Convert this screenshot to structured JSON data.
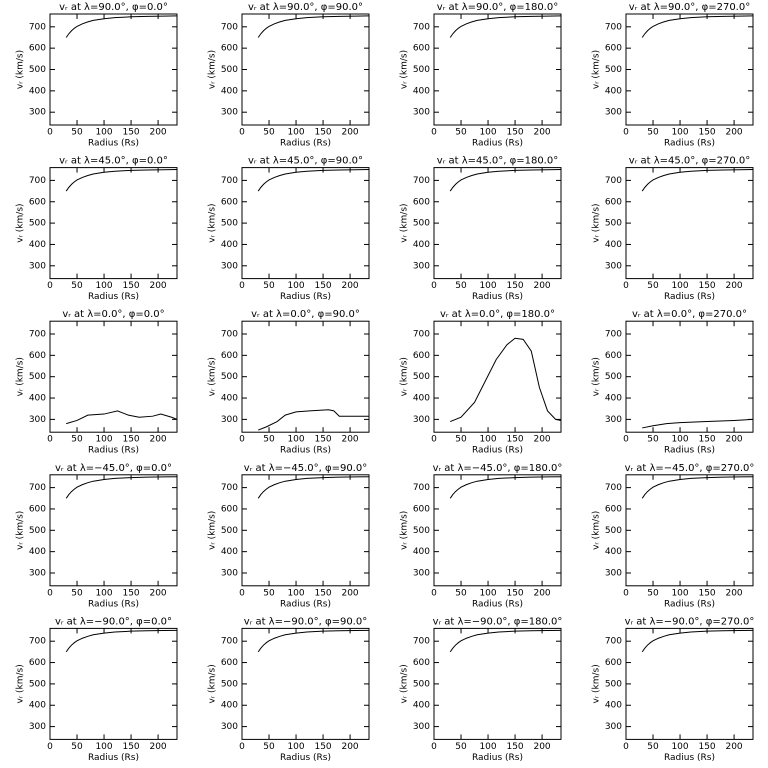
{
  "chart_data": [
    {
      "type": "line",
      "title": "vᵣ at λ=90.0°, φ=0.0°",
      "x_label": "Radius (Rs)",
      "y_label": "vᵣ (km/s)",
      "x": [
        30,
        35,
        40,
        45,
        50,
        60,
        70,
        80,
        100,
        120,
        150,
        180,
        210,
        235
      ],
      "series": [
        {
          "color": "#000000",
          "values": [
            650,
            668,
            682,
            693,
            702,
            714,
            723,
            730,
            738,
            743,
            747,
            749,
            750,
            751
          ]
        }
      ],
      "xlim": [
        0,
        235
      ],
      "ylim": [
        240,
        760
      ],
      "xticks": [
        0,
        50,
        100,
        150,
        200
      ],
      "yticks": [
        300,
        400,
        500,
        600,
        700
      ]
    },
    {
      "type": "line",
      "title": "vᵣ at λ=90.0°, φ=90.0°",
      "x_label": "Radius (Rs)",
      "y_label": "vᵣ (km/s)",
      "x": [
        30,
        35,
        40,
        45,
        50,
        60,
        70,
        80,
        100,
        120,
        150,
        180,
        210,
        235
      ],
      "series": [
        {
          "color": "#000000",
          "values": [
            650,
            668,
            682,
            693,
            702,
            714,
            723,
            730,
            738,
            743,
            747,
            749,
            750,
            751
          ]
        }
      ],
      "xlim": [
        0,
        235
      ],
      "ylim": [
        240,
        760
      ],
      "xticks": [
        0,
        50,
        100,
        150,
        200
      ],
      "yticks": [
        300,
        400,
        500,
        600,
        700
      ]
    },
    {
      "type": "line",
      "title": "vᵣ at λ=90.0°, φ=180.0°",
      "x_label": "Radius (Rs)",
      "y_label": "vᵣ (km/s)",
      "x": [
        30,
        35,
        40,
        45,
        50,
        60,
        70,
        80,
        100,
        120,
        150,
        180,
        210,
        235
      ],
      "series": [
        {
          "color": "#000000",
          "values": [
            650,
            668,
            682,
            693,
            702,
            714,
            723,
            730,
            738,
            743,
            747,
            749,
            750,
            751
          ]
        }
      ],
      "xlim": [
        0,
        235
      ],
      "ylim": [
        240,
        760
      ],
      "xticks": [
        0,
        50,
        100,
        150,
        200
      ],
      "yticks": [
        300,
        400,
        500,
        600,
        700
      ]
    },
    {
      "type": "line",
      "title": "vᵣ at λ=90.0°, φ=270.0°",
      "x_label": "Radius (Rs)",
      "y_label": "vᵣ (km/s)",
      "x": [
        30,
        35,
        40,
        45,
        50,
        60,
        70,
        80,
        100,
        120,
        150,
        180,
        210,
        235
      ],
      "series": [
        {
          "color": "#000000",
          "values": [
            650,
            668,
            682,
            693,
            702,
            714,
            723,
            730,
            738,
            743,
            747,
            749,
            750,
            751
          ]
        }
      ],
      "xlim": [
        0,
        235
      ],
      "ylim": [
        240,
        760
      ],
      "xticks": [
        0,
        50,
        100,
        150,
        200
      ],
      "yticks": [
        300,
        400,
        500,
        600,
        700
      ]
    },
    {
      "type": "line",
      "title": "vᵣ at λ=45.0°, φ=0.0°",
      "x_label": "Radius (Rs)",
      "y_label": "vᵣ (km/s)",
      "x": [
        30,
        35,
        40,
        45,
        50,
        60,
        70,
        80,
        100,
        120,
        150,
        180,
        210,
        235
      ],
      "series": [
        {
          "color": "#000000",
          "values": [
            650,
            668,
            682,
            693,
            702,
            714,
            723,
            730,
            738,
            743,
            747,
            749,
            750,
            751
          ]
        }
      ],
      "xlim": [
        0,
        235
      ],
      "ylim": [
        240,
        760
      ],
      "xticks": [
        0,
        50,
        100,
        150,
        200
      ],
      "yticks": [
        300,
        400,
        500,
        600,
        700
      ]
    },
    {
      "type": "line",
      "title": "vᵣ at λ=45.0°, φ=90.0°",
      "x_label": "Radius (Rs)",
      "y_label": "vᵣ (km/s)",
      "x": [
        30,
        35,
        40,
        45,
        50,
        60,
        70,
        80,
        100,
        120,
        150,
        180,
        210,
        235
      ],
      "series": [
        {
          "color": "#000000",
          "values": [
            650,
            668,
            682,
            693,
            702,
            714,
            723,
            730,
            738,
            743,
            747,
            749,
            750,
            751
          ]
        }
      ],
      "xlim": [
        0,
        235
      ],
      "ylim": [
        240,
        760
      ],
      "xticks": [
        0,
        50,
        100,
        150,
        200
      ],
      "yticks": [
        300,
        400,
        500,
        600,
        700
      ]
    },
    {
      "type": "line",
      "title": "vᵣ at λ=45.0°, φ=180.0°",
      "x_label": "Radius (Rs)",
      "y_label": "vᵣ (km/s)",
      "x": [
        30,
        35,
        40,
        45,
        50,
        60,
        70,
        80,
        100,
        120,
        150,
        180,
        210,
        235
      ],
      "series": [
        {
          "color": "#000000",
          "values": [
            650,
            668,
            682,
            693,
            702,
            714,
            723,
            730,
            738,
            743,
            747,
            749,
            750,
            751
          ]
        }
      ],
      "xlim": [
        0,
        235
      ],
      "ylim": [
        240,
        760
      ],
      "xticks": [
        0,
        50,
        100,
        150,
        200
      ],
      "yticks": [
        300,
        400,
        500,
        600,
        700
      ]
    },
    {
      "type": "line",
      "title": "vᵣ at λ=45.0°, φ=270.0°",
      "x_label": "Radius (Rs)",
      "y_label": "vᵣ (km/s)",
      "x": [
        30,
        35,
        40,
        45,
        50,
        60,
        70,
        80,
        100,
        120,
        150,
        180,
        210,
        235
      ],
      "series": [
        {
          "color": "#000000",
          "values": [
            650,
            668,
            682,
            693,
            702,
            714,
            723,
            730,
            738,
            743,
            747,
            749,
            750,
            751
          ]
        }
      ],
      "xlim": [
        0,
        235
      ],
      "ylim": [
        240,
        760
      ],
      "xticks": [
        0,
        50,
        100,
        150,
        200
      ],
      "yticks": [
        300,
        400,
        500,
        600,
        700
      ]
    },
    {
      "type": "line",
      "title": "vᵣ at λ=0.0°, φ=0.0°",
      "x_label": "Radius (Rs)",
      "y_label": "vᵣ (km/s)",
      "x": [
        30,
        50,
        70,
        100,
        125,
        145,
        165,
        190,
        205,
        225,
        235
      ],
      "series": [
        {
          "color": "#000000",
          "values": [
            280,
            295,
            320,
            325,
            340,
            320,
            310,
            315,
            325,
            310,
            300
          ]
        }
      ],
      "xlim": [
        0,
        235
      ],
      "ylim": [
        240,
        760
      ],
      "xticks": [
        0,
        50,
        100,
        150,
        200
      ],
      "yticks": [
        300,
        400,
        500,
        600,
        700
      ]
    },
    {
      "type": "line",
      "title": "vᵣ at λ=0.0°, φ=90.0°",
      "x_label": "Radius (Rs)",
      "y_label": "vᵣ (km/s)",
      "x": [
        30,
        45,
        65,
        80,
        100,
        125,
        160,
        170,
        180,
        235
      ],
      "series": [
        {
          "color": "#000000",
          "values": [
            250,
            265,
            290,
            320,
            335,
            340,
            345,
            340,
            315,
            315
          ]
        }
      ],
      "xlim": [
        0,
        235
      ],
      "ylim": [
        240,
        760
      ],
      "xticks": [
        0,
        50,
        100,
        150,
        200
      ],
      "yticks": [
        300,
        400,
        500,
        600,
        700
      ]
    },
    {
      "type": "line",
      "title": "vᵣ at λ=0.0°, φ=180.0°",
      "x_label": "Radius (Rs)",
      "y_label": "vᵣ (km/s)",
      "x": [
        30,
        50,
        75,
        95,
        115,
        135,
        150,
        165,
        180,
        195,
        210,
        225,
        235
      ],
      "series": [
        {
          "color": "#000000",
          "values": [
            290,
            310,
            380,
            480,
            580,
            650,
            680,
            675,
            620,
            450,
            340,
            300,
            295
          ]
        }
      ],
      "xlim": [
        0,
        235
      ],
      "ylim": [
        240,
        760
      ],
      "xticks": [
        0,
        50,
        100,
        150,
        200
      ],
      "yticks": [
        300,
        400,
        500,
        600,
        700
      ]
    },
    {
      "type": "line",
      "title": "vᵣ at λ=0.0°, φ=270.0°",
      "x_label": "Radius (Rs)",
      "y_label": "vᵣ (km/s)",
      "x": [
        30,
        50,
        75,
        100,
        150,
        200,
        235
      ],
      "series": [
        {
          "color": "#000000",
          "values": [
            260,
            270,
            280,
            285,
            290,
            295,
            300
          ]
        }
      ],
      "xlim": [
        0,
        235
      ],
      "ylim": [
        240,
        760
      ],
      "xticks": [
        0,
        50,
        100,
        150,
        200
      ],
      "yticks": [
        300,
        400,
        500,
        600,
        700
      ]
    },
    {
      "type": "line",
      "title": "vᵣ at λ=−45.0°, φ=0.0°",
      "x_label": "Radius (Rs)",
      "y_label": "vᵣ (km/s)",
      "x": [
        30,
        35,
        40,
        45,
        50,
        60,
        70,
        80,
        100,
        120,
        150,
        180,
        210,
        235
      ],
      "series": [
        {
          "color": "#000000",
          "values": [
            650,
            668,
            682,
            693,
            702,
            714,
            723,
            730,
            738,
            743,
            747,
            749,
            750,
            751
          ]
        }
      ],
      "xlim": [
        0,
        235
      ],
      "ylim": [
        240,
        760
      ],
      "xticks": [
        0,
        50,
        100,
        150,
        200
      ],
      "yticks": [
        300,
        400,
        500,
        600,
        700
      ]
    },
    {
      "type": "line",
      "title": "vᵣ at λ=−45.0°, φ=90.0°",
      "x_label": "Radius (Rs)",
      "y_label": "vᵣ (km/s)",
      "x": [
        30,
        35,
        40,
        45,
        50,
        60,
        70,
        80,
        100,
        120,
        150,
        180,
        210,
        235
      ],
      "series": [
        {
          "color": "#000000",
          "values": [
            650,
            668,
            682,
            693,
            702,
            714,
            723,
            730,
            738,
            743,
            747,
            749,
            750,
            751
          ]
        }
      ],
      "xlim": [
        0,
        235
      ],
      "ylim": [
        240,
        760
      ],
      "xticks": [
        0,
        50,
        100,
        150,
        200
      ],
      "yticks": [
        300,
        400,
        500,
        600,
        700
      ]
    },
    {
      "type": "line",
      "title": "vᵣ at λ=−45.0°, φ=180.0°",
      "x_label": "Radius (Rs)",
      "y_label": "vᵣ (km/s)",
      "x": [
        30,
        35,
        40,
        45,
        50,
        60,
        70,
        80,
        100,
        120,
        150,
        180,
        210,
        235
      ],
      "series": [
        {
          "color": "#000000",
          "values": [
            650,
            668,
            682,
            693,
            702,
            714,
            723,
            730,
            738,
            743,
            747,
            749,
            750,
            751
          ]
        }
      ],
      "xlim": [
        0,
        235
      ],
      "ylim": [
        240,
        760
      ],
      "xticks": [
        0,
        50,
        100,
        150,
        200
      ],
      "yticks": [
        300,
        400,
        500,
        600,
        700
      ]
    },
    {
      "type": "line",
      "title": "vᵣ at λ=−45.0°, φ=270.0°",
      "x_label": "Radius (Rs)",
      "y_label": "vᵣ (km/s)",
      "x": [
        30,
        35,
        40,
        45,
        50,
        60,
        70,
        80,
        100,
        120,
        150,
        180,
        210,
        235
      ],
      "series": [
        {
          "color": "#000000",
          "values": [
            650,
            668,
            682,
            693,
            702,
            714,
            723,
            730,
            738,
            743,
            747,
            749,
            750,
            751
          ]
        }
      ],
      "xlim": [
        0,
        235
      ],
      "ylim": [
        240,
        760
      ],
      "xticks": [
        0,
        50,
        100,
        150,
        200
      ],
      "yticks": [
        300,
        400,
        500,
        600,
        700
      ]
    },
    {
      "type": "line",
      "title": "vᵣ at λ=−90.0°, φ=0.0°",
      "x_label": "Radius (Rs)",
      "y_label": "vᵣ (km/s)",
      "x": [
        30,
        35,
        40,
        45,
        50,
        60,
        70,
        80,
        100,
        120,
        150,
        180,
        210,
        235
      ],
      "series": [
        {
          "color": "#000000",
          "values": [
            650,
            668,
            682,
            693,
            702,
            714,
            723,
            730,
            738,
            743,
            747,
            749,
            750,
            751
          ]
        }
      ],
      "xlim": [
        0,
        235
      ],
      "ylim": [
        240,
        760
      ],
      "xticks": [
        0,
        50,
        100,
        150,
        200
      ],
      "yticks": [
        300,
        400,
        500,
        600,
        700
      ]
    },
    {
      "type": "line",
      "title": "vᵣ at λ=−90.0°, φ=90.0°",
      "x_label": "Radius (Rs)",
      "y_label": "vᵣ (km/s)",
      "x": [
        30,
        35,
        40,
        45,
        50,
        60,
        70,
        80,
        100,
        120,
        150,
        180,
        210,
        235
      ],
      "series": [
        {
          "color": "#000000",
          "values": [
            650,
            668,
            682,
            693,
            702,
            714,
            723,
            730,
            738,
            743,
            747,
            749,
            750,
            751
          ]
        }
      ],
      "xlim": [
        0,
        235
      ],
      "ylim": [
        240,
        760
      ],
      "xticks": [
        0,
        50,
        100,
        150,
        200
      ],
      "yticks": [
        300,
        400,
        500,
        600,
        700
      ]
    },
    {
      "type": "line",
      "title": "vᵣ at λ=−90.0°, φ=180.0°",
      "x_label": "Radius (Rs)",
      "y_label": "vᵣ (km/s)",
      "x": [
        30,
        35,
        40,
        45,
        50,
        60,
        70,
        80,
        100,
        120,
        150,
        180,
        210,
        235
      ],
      "series": [
        {
          "color": "#000000",
          "values": [
            650,
            668,
            682,
            693,
            702,
            714,
            723,
            730,
            738,
            743,
            747,
            749,
            750,
            751
          ]
        }
      ],
      "xlim": [
        0,
        235
      ],
      "ylim": [
        240,
        760
      ],
      "xticks": [
        0,
        50,
        100,
        150,
        200
      ],
      "yticks": [
        300,
        400,
        500,
        600,
        700
      ]
    },
    {
      "type": "line",
      "title": "vᵣ at λ=−90.0°, φ=270.0°",
      "x_label": "Radius (Rs)",
      "y_label": "vᵣ (km/s)",
      "x": [
        30,
        35,
        40,
        45,
        50,
        60,
        70,
        80,
        100,
        120,
        150,
        180,
        210,
        235
      ],
      "series": [
        {
          "color": "#000000",
          "values": [
            650,
            668,
            682,
            693,
            702,
            714,
            723,
            730,
            738,
            743,
            747,
            749,
            750,
            751
          ]
        }
      ],
      "xlim": [
        0,
        235
      ],
      "ylim": [
        240,
        760
      ],
      "xticks": [
        0,
        50,
        100,
        150,
        200
      ],
      "yticks": [
        300,
        400,
        500,
        600,
        700
      ]
    }
  ]
}
